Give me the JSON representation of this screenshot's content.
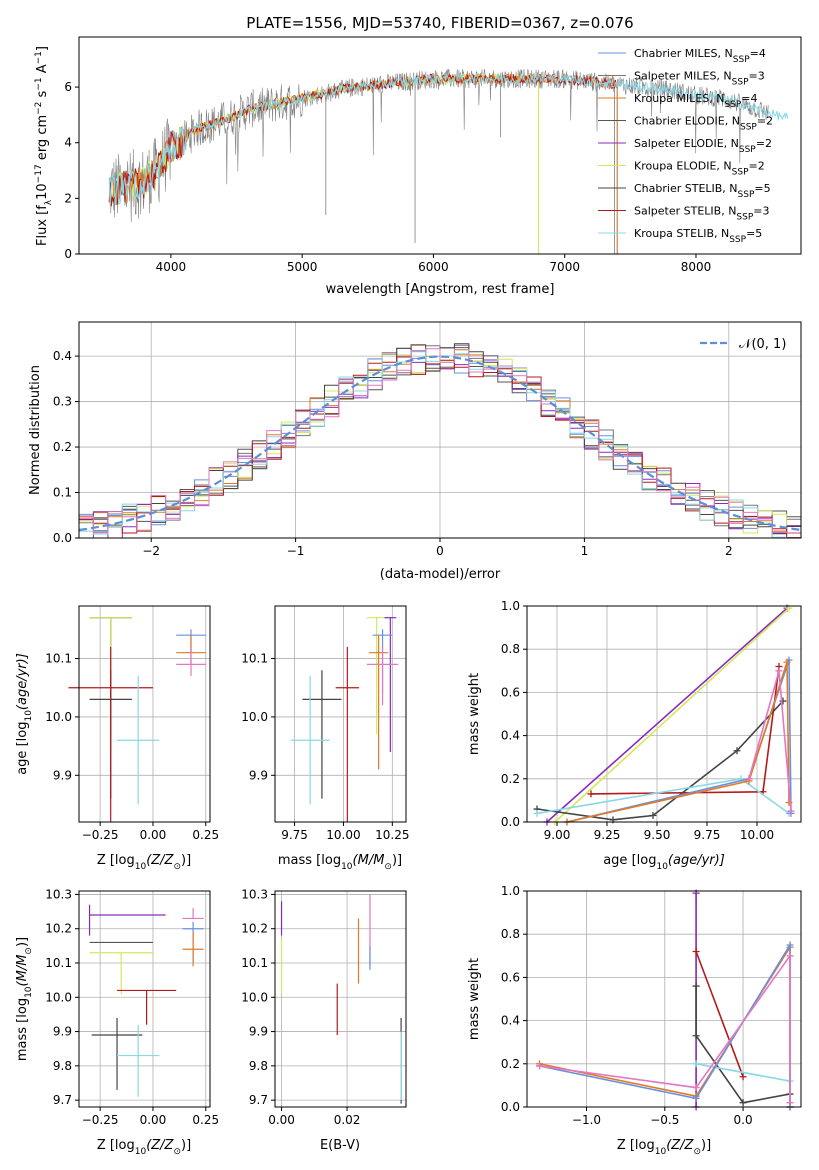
{
  "colors": {
    "chabrier_miles": "#6a8fe0",
    "salpeter_miles": "#777777",
    "kroupa_miles": "#e07a26",
    "chabrier_elodie": "#555555",
    "salpeter_elodie": "#8a2bbf",
    "kroupa_elodie": "#d4e85a",
    "chabrier_stelib": "#444444",
    "salpeter_stelib": "#b31b1b",
    "kroupa_stelib": "#87d8e8",
    "pink": "#e377c2",
    "gauss": "#5b8fd6"
  },
  "chart_data": [
    {
      "id": "spectrum",
      "type": "line",
      "title": "PLATE=1556, MJD=53740, FIBERID=0367, z=0.076",
      "xlabel": "wavelength [Angstrom, rest frame]",
      "ylabel_parts": [
        "Flux [f",
        "λ",
        "10",
        "−17",
        " erg cm",
        "−2",
        " s",
        "−1",
        " A",
        "−1",
        "]"
      ],
      "xlim": [
        3300,
        8800
      ],
      "ylim": [
        0,
        7.8
      ],
      "xticks": [
        4000,
        5000,
        6000,
        7000,
        8000
      ],
      "yticks": [
        0,
        2,
        4,
        6
      ],
      "grid": false,
      "legend_position": "right",
      "legend": [
        {
          "text": "Chabrier MILES, N",
          "sub": "SSP",
          "tail": "=4",
          "color_key": "chabrier_miles"
        },
        {
          "text": "Salpeter MILES, N",
          "sub": "SSP",
          "tail": "=3",
          "color_key": "salpeter_miles"
        },
        {
          "text": "Kroupa MILES, N",
          "sub": "SSP",
          "tail": "=4",
          "color_key": "kroupa_miles"
        },
        {
          "text": "Chabrier ELODIE, N",
          "sub": "SSP",
          "tail": "=2",
          "color_key": "chabrier_elodie"
        },
        {
          "text": "Salpeter ELODIE, N",
          "sub": "SSP",
          "tail": "=2",
          "color_key": "salpeter_elodie"
        },
        {
          "text": "Kroupa ELODIE, N",
          "sub": "SSP",
          "tail": "=2",
          "color_key": "kroupa_elodie"
        },
        {
          "text": "Chabrier STELIB, N",
          "sub": "SSP",
          "tail": "=5",
          "color_key": "chabrier_stelib"
        },
        {
          "text": "Salpeter STELIB, N",
          "sub": "SSP",
          "tail": "=3",
          "color_key": "salpeter_stelib"
        },
        {
          "text": "Kroupa STELIB, N",
          "sub": "SSP",
          "tail": "=5",
          "color_key": "kroupa_stelib"
        }
      ],
      "continuum": [
        [
          3530,
          2.3
        ],
        [
          3650,
          2.4
        ],
        [
          3800,
          2.6
        ],
        [
          3900,
          3.0
        ],
        [
          4000,
          3.8
        ],
        [
          4100,
          4.1
        ],
        [
          4200,
          4.5
        ],
        [
          4400,
          4.8
        ],
        [
          4600,
          5.2
        ],
        [
          4800,
          5.4
        ],
        [
          5000,
          5.6
        ],
        [
          5200,
          5.8
        ],
        [
          5400,
          6.0
        ],
        [
          5600,
          6.1
        ],
        [
          5800,
          6.2
        ],
        [
          6000,
          6.3
        ],
        [
          6200,
          6.3
        ],
        [
          6400,
          6.3
        ],
        [
          6600,
          6.3
        ],
        [
          6800,
          6.3
        ],
        [
          7000,
          6.3
        ],
        [
          7200,
          6.2
        ],
        [
          7400,
          6.1
        ],
        [
          7600,
          6.0
        ],
        [
          7800,
          5.9
        ],
        [
          8000,
          5.7
        ],
        [
          8200,
          5.6
        ],
        [
          8400,
          5.3
        ],
        [
          8600,
          5.0
        ],
        [
          8800,
          4.8
        ]
      ]
    },
    {
      "id": "residuals",
      "type": "histogram",
      "xlabel": "(data-model)/error",
      "ylabel": "Normed distribution",
      "xlim": [
        -2.5,
        2.5
      ],
      "ylim": [
        0,
        0.475
      ],
      "xticks": [
        -2,
        -1,
        0,
        1,
        2
      ],
      "yticks": [
        0.0,
        0.1,
        0.2,
        0.3,
        0.4
      ],
      "grid": true,
      "legend_position": "upper right",
      "gauss_label": "𝒩(0, 1)",
      "bin_width": 0.1
    },
    {
      "id": "age_vs_Z",
      "type": "errorbar",
      "xlabel_main": "Z [log",
      "xlabel_sub": "10",
      "xlabel_tail": "(Z/Z",
      "xlabel_sub2": "⊙",
      "xlabel_end": ")]",
      "ylabel_parts": [
        "age  [log",
        "10",
        "(age/yr)]"
      ],
      "xlim": [
        -0.35,
        0.27
      ],
      "ylim": [
        9.82,
        10.19
      ],
      "xticks": [
        -0.25,
        0.0,
        0.25
      ],
      "yticks": [
        9.9,
        10.0,
        10.1
      ],
      "grid": true,
      "points": [
        {
          "x": 0.18,
          "y": 10.14,
          "xerr": 0.07,
          "yerr": [
            0.03,
            0.01
          ],
          "color_key": "chabrier_miles"
        },
        {
          "x": 0.18,
          "y": 10.11,
          "xerr": 0.07,
          "yerr": [
            0.02,
            0.03
          ],
          "color_key": "kroupa_miles"
        },
        {
          "x": 0.18,
          "y": 10.09,
          "xerr": 0.07,
          "yerr": [
            0.02,
            0.03
          ],
          "color_key": "pink"
        },
        {
          "x": -0.2,
          "y": 10.17,
          "xerr": 0.1,
          "yerr": [
            0.2,
            0.0
          ],
          "color_key": "chabrier_elodie"
        },
        {
          "x": -0.2,
          "y": 10.17,
          "xerr": 0.1,
          "yerr": [
            0.23,
            0.0
          ],
          "color_key": "kroupa_elodie"
        },
        {
          "x": -0.2,
          "y": 10.03,
          "xerr": 0.1,
          "yerr": [
            0.17,
            0.05
          ],
          "color_key": "chabrier_stelib"
        },
        {
          "x": -0.2,
          "y": 10.05,
          "xerr": 0.2,
          "yerr": [
            0.23,
            0.07
          ],
          "color_key": "salpeter_stelib"
        },
        {
          "x": -0.07,
          "y": 9.96,
          "xerr": 0.1,
          "yerr": [
            0.11,
            0.11
          ],
          "color_key": "kroupa_stelib"
        }
      ]
    },
    {
      "id": "age_vs_mass",
      "type": "errorbar",
      "xlabel_main": "mass [log",
      "xlabel_sub": "10",
      "xlabel_tail": "(M/M",
      "xlabel_sub2": "⊙",
      "xlabel_end": ")]",
      "xlim": [
        9.65,
        10.32
      ],
      "ylim": [
        9.82,
        10.19
      ],
      "xticks": [
        9.75,
        10.0,
        10.25
      ],
      "yticks": [
        9.9,
        10.0,
        10.1
      ],
      "grid": true,
      "points": [
        {
          "x": 10.17,
          "y": 10.17,
          "xerr": 0.05,
          "yerr": [
            0.2,
            0.0
          ],
          "color_key": "kroupa_elodie"
        },
        {
          "x": 10.24,
          "y": 10.17,
          "xerr": 0.03,
          "yerr": [
            0.23,
            0.0
          ],
          "color_key": "salpeter_elodie"
        },
        {
          "x": 10.2,
          "y": 10.14,
          "xerr": 0.05,
          "yerr": [
            0.1,
            0.01
          ],
          "color_key": "chabrier_miles"
        },
        {
          "x": 10.18,
          "y": 10.11,
          "xerr": 0.05,
          "yerr": [
            0.2,
            0.03
          ],
          "color_key": "kroupa_miles"
        },
        {
          "x": 10.2,
          "y": 10.09,
          "xerr": 0.08,
          "yerr": [
            0.07,
            0.03
          ],
          "color_key": "pink"
        },
        {
          "x": 10.02,
          "y": 10.05,
          "xerr": 0.06,
          "yerr": [
            0.23,
            0.07
          ],
          "color_key": "salpeter_stelib"
        },
        {
          "x": 9.89,
          "y": 10.03,
          "xerr": 0.1,
          "yerr": [
            0.17,
            0.05
          ],
          "color_key": "chabrier_stelib"
        },
        {
          "x": 9.83,
          "y": 9.96,
          "xerr": 0.1,
          "yerr": [
            0.11,
            0.11
          ],
          "color_key": "kroupa_stelib"
        }
      ]
    },
    {
      "id": "massweight_vs_age",
      "type": "line",
      "xlabel_parts": [
        "age  [log",
        "10",
        "(age/yr)]"
      ],
      "ylabel": "mass weight",
      "xlim": [
        8.85,
        10.22
      ],
      "ylim": [
        0.0,
        1.0
      ],
      "xticks": [
        9.0,
        9.25,
        9.5,
        9.75,
        10.0
      ],
      "yticks": [
        0.0,
        0.2,
        0.4,
        0.6,
        0.8,
        1.0
      ],
      "grid": true,
      "series": [
        {
          "color_key": "salpeter_elodie",
          "points": [
            [
              8.95,
              0.0
            ],
            [
              10.15,
              0.99
            ]
          ]
        },
        {
          "color_key": "kroupa_elodie",
          "points": [
            [
              8.99,
              0.0
            ],
            [
              10.16,
              0.99
            ]
          ]
        },
        {
          "color_key": "chabrier_stelib",
          "points": [
            [
              8.9,
              0.06
            ],
            [
              9.28,
              0.01
            ],
            [
              9.48,
              0.03
            ],
            [
              9.9,
              0.33
            ],
            [
              10.13,
              0.56
            ]
          ]
        },
        {
          "color_key": "salpeter_stelib",
          "points": [
            [
              9.17,
              0.13
            ],
            [
              10.03,
              0.14
            ],
            [
              10.11,
              0.72
            ]
          ]
        },
        {
          "color_key": "kroupa_stelib",
          "points": [
            [
              8.9,
              0.04
            ],
            [
              9.92,
              0.2
            ],
            [
              10.16,
              0.04
            ]
          ]
        },
        {
          "color_key": "chabrier_miles",
          "points": [
            [
              9.05,
              0.0
            ],
            [
              9.96,
              0.2
            ],
            [
              10.16,
              0.75
            ],
            [
              10.17,
              0.04
            ]
          ]
        },
        {
          "color_key": "kroupa_miles",
          "points": [
            [
              9.05,
              0.0
            ],
            [
              9.96,
              0.19
            ],
            [
              10.15,
              0.74
            ],
            [
              10.16,
              0.09
            ]
          ]
        },
        {
          "color_key": "pink",
          "points": [
            [
              9.96,
              0.2
            ],
            [
              10.11,
              0.7
            ],
            [
              10.17,
              0.05
            ]
          ]
        }
      ]
    },
    {
      "id": "mass_vs_Z",
      "type": "errorbar",
      "xlabel_main": "Z [log",
      "xlabel_sub": "10",
      "xlabel_tail": "(Z/Z",
      "xlabel_sub2": "⊙",
      "xlabel_end": ")]",
      "ylabel_parts": [
        "mass [log",
        "10",
        "(M/M",
        "⊙",
        ")]"
      ],
      "xlim": [
        -0.35,
        0.27
      ],
      "ylim": [
        9.68,
        10.31
      ],
      "xticks": [
        -0.25,
        0.0,
        0.25
      ],
      "yticks": [
        9.7,
        9.8,
        9.9,
        10.0,
        10.1,
        10.2,
        10.3
      ],
      "grid": true,
      "points": [
        {
          "x": -0.3,
          "y": 10.24,
          "xerr": 0.0,
          "yerr": [
            0.06,
            0.03
          ],
          "color_key": "salpeter_elodie"
        },
        {
          "x": -0.12,
          "y": 10.24,
          "xerr": 0.18,
          "yerr": [
            0.0,
            0.0
          ],
          "color_key": "salpeter_elodie"
        },
        {
          "x": -0.15,
          "y": 10.16,
          "xerr": 0.15,
          "yerr": [
            0.0,
            0.0
          ],
          "color_key": "chabrier_elodie"
        },
        {
          "x": -0.15,
          "y": 10.13,
          "xerr": 0.15,
          "yerr": [
            0.12,
            0.0
          ],
          "color_key": "kroupa_elodie"
        },
        {
          "x": 0.19,
          "y": 10.23,
          "xerr": 0.05,
          "yerr": [
            0.0,
            0.03
          ],
          "color_key": "pink"
        },
        {
          "x": 0.19,
          "y": 10.2,
          "xerr": 0.05,
          "yerr": [
            0.1,
            0.02
          ],
          "color_key": "chabrier_miles"
        },
        {
          "x": 0.19,
          "y": 10.14,
          "xerr": 0.05,
          "yerr": [
            0.05,
            0.05
          ],
          "color_key": "kroupa_miles"
        },
        {
          "x": -0.03,
          "y": 10.02,
          "xerr": 0.14,
          "yerr": [
            0.1,
            0.0
          ],
          "color_key": "salpeter_stelib"
        },
        {
          "x": -0.17,
          "y": 9.89,
          "xerr": 0.12,
          "yerr": [
            0.16,
            0.05
          ],
          "color_key": "chabrier_stelib"
        },
        {
          "x": -0.07,
          "y": 9.83,
          "xerr": 0.1,
          "yerr": [
            0.12,
            0.09
          ],
          "color_key": "kroupa_stelib"
        }
      ]
    },
    {
      "id": "mass_vs_ebv",
      "type": "errorbar",
      "xlabel": "E(B-V)",
      "xlim": [
        -0.002,
        0.038
      ],
      "ylim": [
        9.68,
        10.31
      ],
      "xticks": [
        0.0,
        0.02
      ],
      "yticks": [
        9.7,
        9.8,
        9.9,
        10.0,
        10.1,
        10.2,
        10.3
      ],
      "grid": true,
      "points": [
        {
          "x": 0.0,
          "y": 10.24,
          "yerr": [
            0.06,
            0.04
          ],
          "color_key": "salpeter_elodie"
        },
        {
          "x": 0.0,
          "y": 10.13,
          "yerr": [
            0.12,
            0.04
          ],
          "color_key": "kroupa_elodie"
        },
        {
          "x": 0.017,
          "y": 10.02,
          "yerr": [
            0.13,
            0.02
          ],
          "color_key": "salpeter_stelib"
        },
        {
          "x": 0.0235,
          "y": 10.14,
          "yerr": [
            0.1,
            0.09
          ],
          "color_key": "kroupa_miles"
        },
        {
          "x": 0.027,
          "y": 10.2,
          "yerr": [
            0.11,
            0.1
          ],
          "color_key": "pink"
        },
        {
          "x": 0.027,
          "y": 10.15,
          "yerr": [
            0.07,
            0.0
          ],
          "color_key": "chabrier_miles"
        },
        {
          "x": 0.0365,
          "y": 9.89,
          "yerr": [
            0.2,
            0.05
          ],
          "color_key": "chabrier_stelib"
        },
        {
          "x": 0.0365,
          "y": 9.83,
          "yerr": [
            0.13,
            0.07
          ],
          "color_key": "kroupa_stelib"
        }
      ]
    },
    {
      "id": "massweight_vs_Z",
      "type": "line",
      "xlabel_main": "Z [log",
      "xlabel_sub": "10",
      "xlabel_tail": "(Z/Z",
      "xlabel_sub2": "⊙",
      "xlabel_end": ")]",
      "ylabel": "mass weight",
      "xlim": [
        -1.38,
        0.37
      ],
      "ylim": [
        0.0,
        1.0
      ],
      "xticks": [
        -1.0,
        -0.5,
        0.0
      ],
      "yticks": [
        0.0,
        0.2,
        0.4,
        0.6,
        0.8,
        1.0
      ],
      "grid": true,
      "series": [
        {
          "color_key": "kroupa_elodie",
          "points": [
            [
              -0.3,
              0.0
            ],
            [
              -0.3,
              0.99
            ]
          ]
        },
        {
          "color_key": "salpeter_elodie",
          "points": [
            [
              -0.3,
              0.0
            ],
            [
              -0.3,
              0.99
            ]
          ]
        },
        {
          "color_key": "salpeter_stelib",
          "points": [
            [
              -0.3,
              0.72
            ],
            [
              0.0,
              0.14
            ]
          ]
        },
        {
          "color_key": "chabrier_stelib",
          "points": [
            [
              -0.3,
              0.56
            ],
            [
              -0.3,
              0.33
            ],
            [
              0.0,
              0.02
            ],
            [
              0.3,
              0.06
            ],
            [
              0.3,
              0.0
            ]
          ]
        },
        {
          "color_key": "kroupa_stelib",
          "points": [
            [
              -0.3,
              0.2
            ],
            [
              0.3,
              0.12
            ],
            [
              0.3,
              0.0
            ]
          ]
        },
        {
          "color_key": "kroupa_miles",
          "points": [
            [
              -1.3,
              0.2
            ],
            [
              -0.3,
              0.05
            ],
            [
              0.3,
              0.74
            ],
            [
              0.3,
              0.0
            ]
          ]
        },
        {
          "color_key": "chabrier_miles",
          "points": [
            [
              -1.3,
              0.19
            ],
            [
              -0.3,
              0.04
            ],
            [
              0.3,
              0.75
            ],
            [
              0.3,
              0.0
            ]
          ]
        },
        {
          "color_key": "pink",
          "points": [
            [
              -1.3,
              0.19
            ],
            [
              -0.3,
              0.09
            ],
            [
              0.3,
              0.7
            ],
            [
              0.3,
              0.02
            ]
          ]
        }
      ]
    }
  ]
}
